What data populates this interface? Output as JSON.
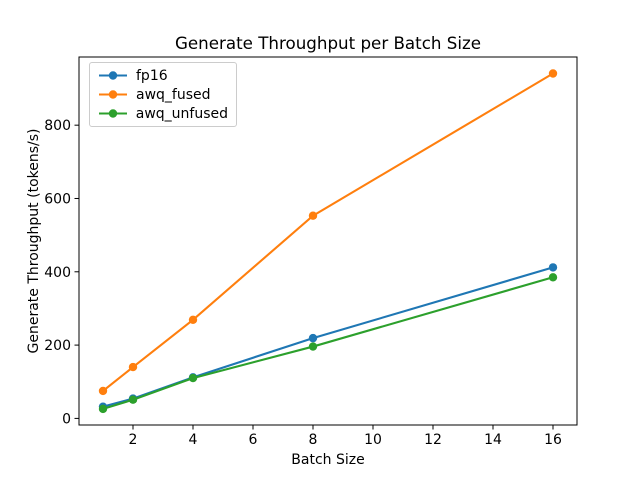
{
  "chart_data": {
    "type": "line",
    "title": "Generate Throughput per Batch Size",
    "xlabel": "Batch Size",
    "ylabel": "Generate Throughput (tokens/s)",
    "x": [
      1,
      2,
      4,
      8,
      16
    ],
    "series": [
      {
        "name": "fp16",
        "color": "#1f77b4",
        "values": [
          32,
          54,
          112,
          219,
          412
        ]
      },
      {
        "name": "awq_fused",
        "color": "#ff7f0e",
        "values": [
          75,
          140,
          269,
          553,
          941
        ]
      },
      {
        "name": "awq_unfused",
        "color": "#2ca02c",
        "values": [
          26,
          51,
          110,
          196,
          385
        ]
      }
    ],
    "xticks": [
      2,
      4,
      6,
      8,
      10,
      12,
      14,
      16
    ],
    "yticks": [
      0,
      200,
      400,
      600,
      800
    ],
    "xlim": [
      0.2,
      16.8
    ],
    "ylim": [
      -18,
      986
    ],
    "grid": false,
    "marker": "o",
    "legend_position": "upper left",
    "legend_entries": [
      "fp16",
      "awq_fused",
      "awq_unfused"
    ],
    "axis_color": "#000000",
    "text_color": "#000000",
    "legend_border_color": "#cccccc",
    "background_color": "#ffffff"
  }
}
